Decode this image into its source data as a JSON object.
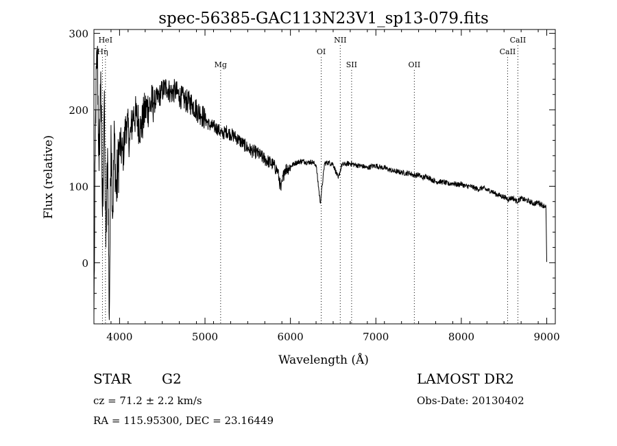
{
  "chart_data": {
    "type": "line",
    "title": "spec-56385-GAC113N23V1_sp13-079.fits",
    "xlabel": "Wavelength (Å)",
    "ylabel": "Flux (relative)",
    "xlim": [
      3700,
      9100
    ],
    "ylim": [
      -80,
      305
    ],
    "xticks": [
      4000,
      5000,
      6000,
      7000,
      8000,
      9000
    ],
    "yticks": [
      0,
      100,
      200,
      300
    ],
    "grid": false,
    "series": [
      {
        "x": [
          3700,
          3720,
          3740,
          3760,
          3780,
          3800,
          3820,
          3840,
          3860,
          3880,
          3900,
          3920,
          3940,
          3960,
          3980,
          4000,
          4040,
          4080,
          4120,
          4160,
          4200,
          4250,
          4300,
          4350,
          4400,
          4450,
          4500,
          4550,
          4600,
          4650,
          4700,
          4750,
          4800,
          4850,
          4900,
          4950,
          5000,
          5050,
          5100,
          5150,
          5200,
          5250,
          5300,
          5350,
          5400,
          5450,
          5500,
          5550,
          5600,
          5650,
          5700,
          5750,
          5800,
          5850,
          5890,
          5930,
          5980,
          6050,
          6100,
          6150,
          6200,
          6250,
          6300,
          6350,
          6400,
          6450,
          6500,
          6560,
          6600,
          6650,
          6700,
          6750,
          6800,
          6850,
          6900,
          6950,
          7000,
          7050,
          7100,
          7150,
          7200,
          7250,
          7300,
          7350,
          7400,
          7450,
          7500,
          7550,
          7600,
          7650,
          7700,
          7750,
          7800,
          7850,
          7900,
          7950,
          8000,
          8050,
          8100,
          8150,
          8200,
          8250,
          8300,
          8350,
          8400,
          8450,
          8500,
          8550,
          8600,
          8650,
          8700,
          8750,
          8800,
          8850,
          8900,
          8950,
          8990,
          9000
        ],
        "y": [
          -70,
          200,
          280,
          120,
          250,
          60,
          210,
          20,
          150,
          -75,
          180,
          60,
          170,
          90,
          120,
          155,
          140,
          185,
          160,
          195,
          190,
          175,
          200,
          205,
          210,
          215,
          225,
          230,
          222,
          225,
          218,
          214,
          210,
          208,
          200,
          195,
          188,
          180,
          178,
          175,
          168,
          172,
          168,
          165,
          160,
          155,
          150,
          146,
          144,
          140,
          135,
          132,
          128,
          120,
          95,
          122,
          124,
          130,
          132,
          133,
          131,
          132,
          128,
          78,
          130,
          131,
          129,
          110,
          128,
          129,
          130,
          128,
          127,
          126,
          124,
          126,
          127,
          125,
          124,
          122,
          120,
          119,
          118,
          117,
          117,
          114,
          115,
          111,
          113,
          109,
          106,
          106,
          105,
          103,
          104,
          102,
          103,
          100,
          100,
          98,
          96,
          98,
          95,
          94,
          90,
          88,
          86,
          83,
          85,
          80,
          84,
          82,
          80,
          77,
          79,
          75,
          74,
          1
        ]
      }
    ],
    "annotations": [
      {
        "label": "HeI",
        "x": 3835,
        "row": 0
      },
      {
        "label": "Hη",
        "x": 3800,
        "row": 1
      },
      {
        "label": "Mg",
        "x": 5183,
        "row": 2
      },
      {
        "label": "OI",
        "x": 6360,
        "row": 1
      },
      {
        "label": "NII",
        "x": 6583,
        "row": 0
      },
      {
        "label": "SII",
        "x": 6716,
        "row": 2
      },
      {
        "label": "OII",
        "x": 7450,
        "row": 2
      },
      {
        "label": "CaII",
        "x": 8542,
        "row": 1
      },
      {
        "label": "CaII",
        "x": 8662,
        "row": 0
      }
    ]
  },
  "info": {
    "object_class": "STAR",
    "subclass": "G2",
    "survey": "LAMOST DR2",
    "redshift": "cz = 71.2 ± 2.2 km/s",
    "obs_date": "Obs-Date: 20130402",
    "coords": "RA = 115.95300, DEC =  23.16449"
  }
}
